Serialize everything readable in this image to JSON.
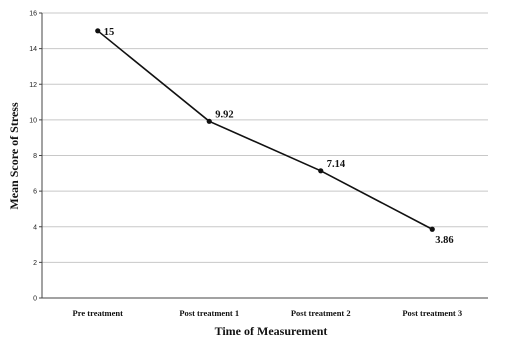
{
  "chart_data": {
    "type": "line",
    "title": "",
    "xlabel": "Time of Measurement",
    "ylabel": "Mean Score of Stress",
    "categories": [
      "Pre treatment",
      "Post treatment 1",
      "Post treatment 2",
      "Post treatment 3"
    ],
    "series": [
      {
        "values": [
          15,
          9.92,
          7.14,
          3.86
        ],
        "labels": [
          "15",
          "9.92",
          "7.14",
          "3.86"
        ]
      }
    ],
    "ylim": [
      0,
      16
    ],
    "yticks": [
      "0",
      "2",
      "4",
      "6",
      "8",
      "10",
      "12",
      "14",
      "16"
    ],
    "grid": true,
    "legend": "none",
    "colors": {
      "line": "#111111",
      "grid": "#c8c8c8"
    }
  }
}
